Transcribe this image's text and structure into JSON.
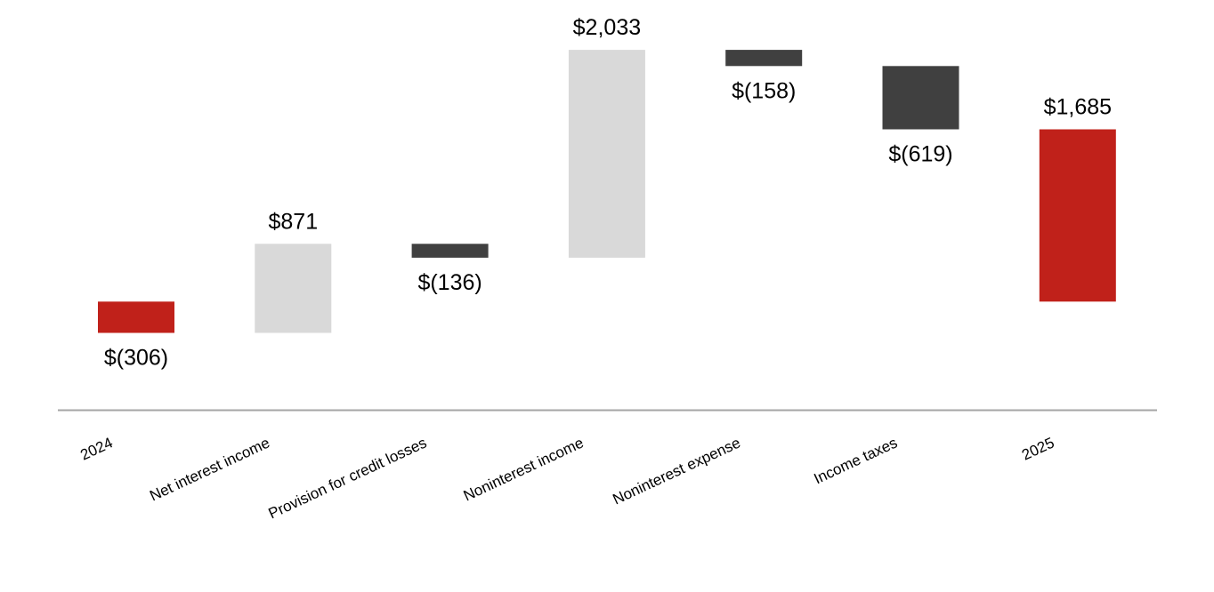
{
  "chart_data": {
    "type": "bar",
    "subtype": "waterfall",
    "categories": [
      "2024",
      "Net interest income",
      "Provision for credit losses",
      "Noninterest income",
      "Noninterest expense",
      "Income taxes",
      "2025"
    ],
    "values": [
      -306,
      871,
      -136,
      2033,
      -158,
      -619,
      1685
    ],
    "bar_kinds": [
      "total",
      "delta",
      "delta",
      "delta",
      "delta",
      "delta",
      "total"
    ],
    "data_labels": [
      "$(306)",
      "$871",
      "$(136)",
      "$2,033",
      "$(158)",
      "$(619)",
      "$1,685"
    ],
    "ylim": [
      -1050,
      1950
    ],
    "grid": false,
    "legend": "none",
    "colors": {
      "total": "#c0211a",
      "increase": "#d9d9d9",
      "decrease": "#404040",
      "axis": "#a6a6a6"
    }
  }
}
